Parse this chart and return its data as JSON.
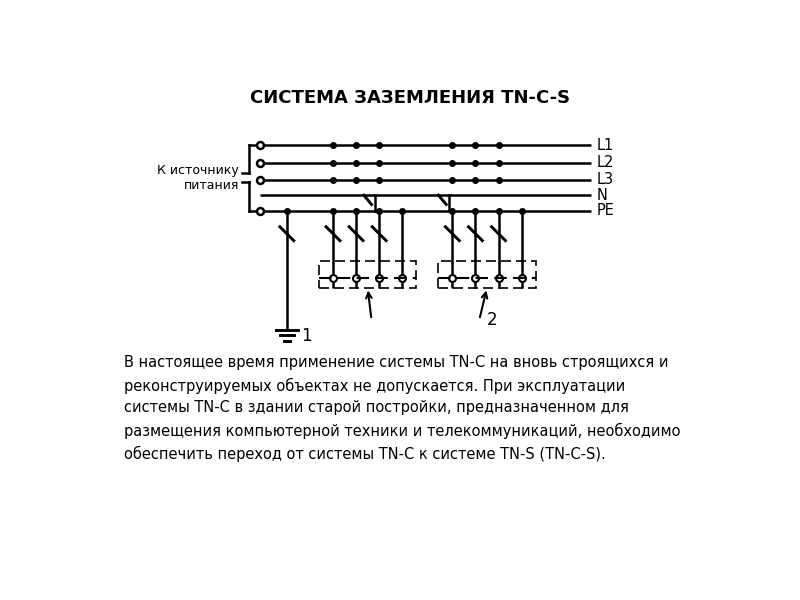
{
  "title": "СИСТЕМА ЗАЗЕМЛЕНИЯ TN-C-S",
  "title_fontsize": 13,
  "bg_color": "#ffffff",
  "line_color": "#000000",
  "text_color": "#000000",
  "label_source": "К источнику\nпитания",
  "labels_right": [
    "L1",
    "L2",
    "L3",
    "N",
    "PE"
  ],
  "label1": "1",
  "label2": "2",
  "description": "В настоящее время применение системы TN-C на вновь строящихся и\nреконструируемых объектах не допускается. При эксплуатации\nсистемы TN-C в здании старой постройки, предназначенном для\nразмещения компьютерной техники и телекоммуникаций, необходимо\nобеспечить переход от системы TN-C к системе TN-S (TN-C-S).",
  "desc_fontsize": 10.5
}
